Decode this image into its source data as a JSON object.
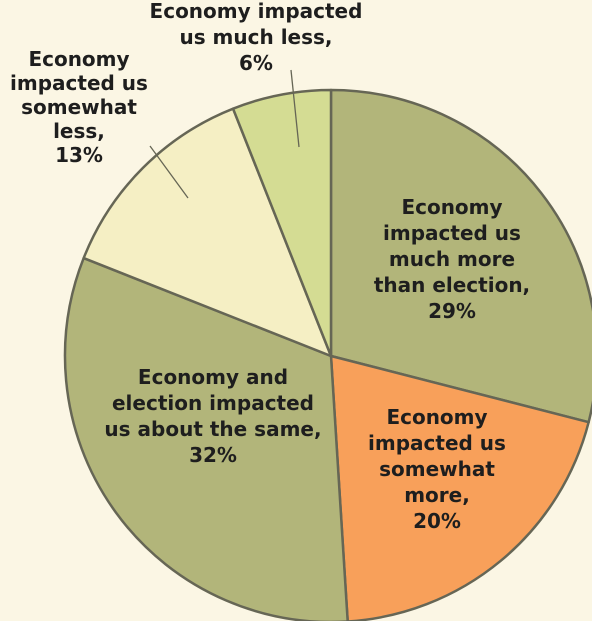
{
  "chart_data": {
    "type": "pie",
    "title": "",
    "slices": [
      {
        "label": [
          "Economy",
          "impacted us",
          "much more",
          "than election,",
          "29%"
        ],
        "category": "Economy impacted us much more than election",
        "value": 29,
        "color": "#b2b57a"
      },
      {
        "label": [
          "Economy",
          "impacted us",
          "somewhat",
          "more,",
          "20%"
        ],
        "category": "Economy impacted us somewhat more",
        "value": 20,
        "color": "#f8a05a"
      },
      {
        "label": [
          "Economy and",
          "election impacted",
          "us about the same,",
          "32%"
        ],
        "category": "Economy and election impacted us about the same",
        "value": 32,
        "color": "#b2b57a"
      },
      {
        "label": [
          "Economy",
          "impacted us",
          "somewhat",
          "less,",
          "13%"
        ],
        "category": "Economy impacted us somewhat less",
        "value": 13,
        "color": "#f5efc4"
      },
      {
        "label": [
          "Economy impacted",
          "us much less,",
          "6%"
        ],
        "category": "Economy impacted us much less",
        "value": 6,
        "color": "#d4dc93"
      }
    ],
    "start_angle_deg": 0,
    "direction": "clockwise",
    "legend": "none",
    "label_placement": "inside for large slices, outside with leader lines for small slices"
  }
}
